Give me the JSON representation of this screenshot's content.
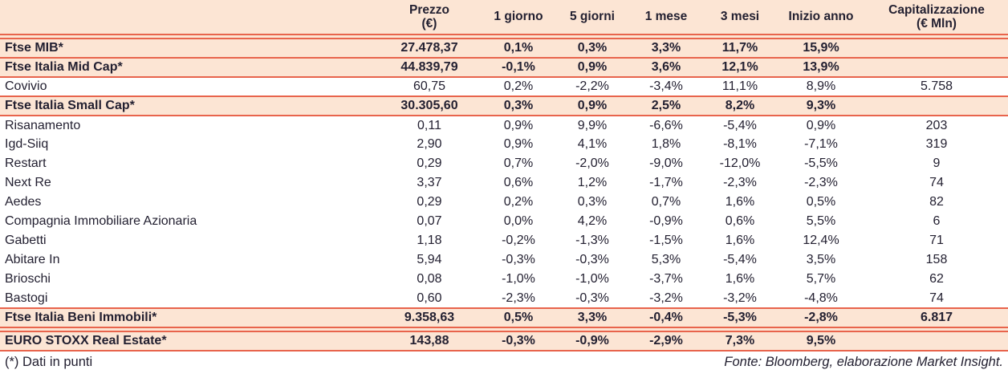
{
  "colors": {
    "row_highlight": "#fce5d4",
    "separator_line": "#e8644c",
    "text": "#232031"
  },
  "chart_data": {
    "type": "table",
    "columns": [
      {
        "label": "",
        "sublabel": ""
      },
      {
        "label": "Prezzo",
        "sublabel": "(€)"
      },
      {
        "label": "1 giorno",
        "sublabel": ""
      },
      {
        "label": "5 giorni",
        "sublabel": ""
      },
      {
        "label": "1 mese",
        "sublabel": ""
      },
      {
        "label": "3 mesi",
        "sublabel": ""
      },
      {
        "label": "Inizio anno",
        "sublabel": ""
      },
      {
        "label": "Capitalizzazione",
        "sublabel": "(€ Mln)"
      }
    ],
    "rows": [
      {
        "name": "Ftse MIB*",
        "type": "index",
        "values": [
          "27.478,37",
          "0,1%",
          "0,3%",
          "3,3%",
          "11,7%",
          "15,9%",
          ""
        ]
      },
      {
        "name": "Ftse Italia Mid Cap*",
        "type": "index",
        "values": [
          "44.839,79",
          "-0,1%",
          "0,9%",
          "3,6%",
          "12,1%",
          "13,9%",
          ""
        ]
      },
      {
        "name": "Covivio",
        "type": "stock",
        "values": [
          "60,75",
          "0,2%",
          "-2,2%",
          "-3,4%",
          "11,1%",
          "8,9%",
          "5.758"
        ]
      },
      {
        "name": "Ftse Italia Small Cap*",
        "type": "index",
        "values": [
          "30.305,60",
          "0,3%",
          "0,9%",
          "2,5%",
          "8,2%",
          "9,3%",
          ""
        ]
      },
      {
        "name": "Risanamento",
        "type": "stock",
        "values": [
          "0,11",
          "0,9%",
          "9,9%",
          "-6,6%",
          "-5,4%",
          "0,9%",
          "203"
        ]
      },
      {
        "name": "Igd-Siiq",
        "type": "stock",
        "values": [
          "2,90",
          "0,9%",
          "4,1%",
          "1,8%",
          "-8,1%",
          "-7,1%",
          "319"
        ]
      },
      {
        "name": "Restart",
        "type": "stock",
        "values": [
          "0,29",
          "0,7%",
          "-2,0%",
          "-9,0%",
          "-12,0%",
          "-5,5%",
          "9"
        ]
      },
      {
        "name": "Next Re",
        "type": "stock",
        "values": [
          "3,37",
          "0,6%",
          "1,2%",
          "-1,7%",
          "-2,3%",
          "-2,3%",
          "74"
        ]
      },
      {
        "name": "Aedes",
        "type": "stock",
        "values": [
          "0,29",
          "0,2%",
          "0,3%",
          "0,7%",
          "1,6%",
          "0,5%",
          "82"
        ]
      },
      {
        "name": "Compagnia Immobiliare Azionaria",
        "type": "stock",
        "values": [
          "0,07",
          "0,0%",
          "4,2%",
          "-0,9%",
          "0,6%",
          "5,5%",
          "6"
        ]
      },
      {
        "name": "Gabetti",
        "type": "stock",
        "values": [
          "1,18",
          "-0,2%",
          "-1,3%",
          "-1,5%",
          "1,6%",
          "12,4%",
          "71"
        ]
      },
      {
        "name": "Abitare In",
        "type": "stock",
        "values": [
          "5,94",
          "-0,3%",
          "-0,3%",
          "5,3%",
          "-5,4%",
          "3,5%",
          "158"
        ]
      },
      {
        "name": "Brioschi",
        "type": "stock",
        "values": [
          "0,08",
          "-1,0%",
          "-1,0%",
          "-3,7%",
          "1,6%",
          "5,7%",
          "62"
        ]
      },
      {
        "name": "Bastogi",
        "type": "stock",
        "values": [
          "0,60",
          "-2,3%",
          "-0,3%",
          "-3,2%",
          "-3,2%",
          "-4,8%",
          "74"
        ]
      },
      {
        "name": "Ftse Italia Beni Immobili*",
        "type": "index",
        "gap_after": true,
        "values": [
          "9.358,63",
          "0,5%",
          "3,3%",
          "-0,4%",
          "-5,3%",
          "-2,8%",
          "6.817"
        ]
      },
      {
        "name": "EURO STOXX Real Estate*",
        "type": "index",
        "values": [
          "143,88",
          "-0,3%",
          "-0,9%",
          "-2,9%",
          "7,3%",
          "9,5%",
          ""
        ]
      }
    ],
    "footnote": "(*) Dati in punti",
    "source": "Fonte: Bloomberg, elaborazione Market Insight."
  }
}
